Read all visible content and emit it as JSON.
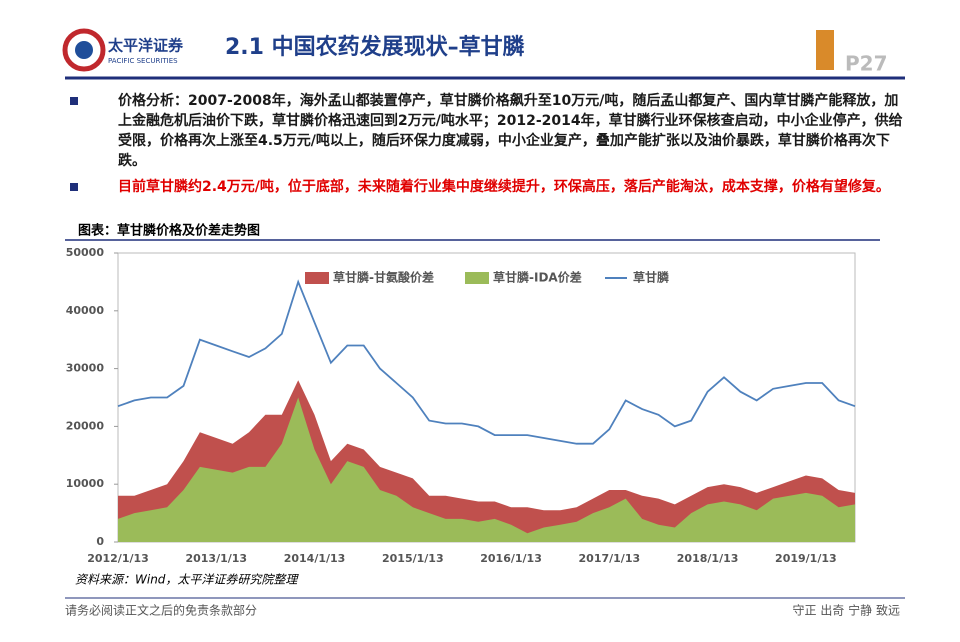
{
  "header": {
    "company": "太平洋证券",
    "company_en": "PACIFIC SECURITIES",
    "title": "2.1 中国农药发展现状–草甘膦",
    "page": "P27"
  },
  "bullets": [
    "价格分析：2007-2008年，海外孟山都装置停产，草甘膦价格飙升至10万元/吨，随后孟山都复产、国内草甘膦产能释放，加上金融危机后油价下跌，草甘膦价格迅速回到2万元/吨水平；2012-2014年，草甘膦行业环保核查启动，中小企业停产，供给受限，价格再次上涨至4.5万元/吨以上，随后环保力度减弱，中小企业复产，叠加产能扩张以及油价暴跌，草甘膦价格再次下跌。",
    "目前草甘膦约2.4万元/吨，位于底部，未来随着行业集中度继续提升，环保高压，落后产能淘汰，成本支撑，价格有望修复。"
  ],
  "chart_data": {
    "type": "area",
    "title": "图表：草甘膦价格及价差走势图",
    "categories": [
      "2012/1/13",
      null,
      null,
      null,
      null,
      null,
      "2013/1/13",
      null,
      null,
      null,
      null,
      null,
      "2014/1/13",
      null,
      null,
      null,
      null,
      null,
      "2015/1/13",
      null,
      null,
      null,
      null,
      null,
      "2016/1/13",
      null,
      null,
      null,
      null,
      null,
      "2017/1/13",
      null,
      null,
      null,
      null,
      null,
      "2018/1/13",
      null,
      null,
      null,
      null,
      null,
      "2019/1/13",
      null,
      null,
      null
    ],
    "ylim": [
      0,
      50000
    ],
    "yticks": [
      0,
      10000,
      20000,
      30000,
      40000,
      50000
    ],
    "series": [
      {
        "name": "草甘膦-甘氨酸价差",
        "color": "#c0504d",
        "values": [
          8000,
          8000,
          9000,
          10000,
          14000,
          19000,
          18000,
          17000,
          19000,
          22000,
          22000,
          28000,
          22000,
          14000,
          17000,
          16000,
          13000,
          12000,
          11000,
          8000,
          8000,
          7500,
          7000,
          7000,
          6000,
          6000,
          5500,
          5500,
          6000,
          7500,
          9000,
          9000,
          8000,
          7500,
          6500,
          8000,
          9500,
          10000,
          9500,
          8500,
          9500,
          10500,
          11500,
          11000,
          9000,
          8500
        ]
      },
      {
        "name": "草甘膦-IDA价差",
        "color": "#9bbb59",
        "values": [
          4000,
          5000,
          5500,
          6000,
          9000,
          13000,
          12500,
          12000,
          13000,
          13000,
          17000,
          25000,
          16000,
          10000,
          14000,
          13000,
          9000,
          8000,
          6000,
          5000,
          4000,
          4000,
          3500,
          4000,
          3000,
          1500,
          2500,
          3000,
          3500,
          5000,
          6000,
          7500,
          4000,
          3000,
          2500,
          5000,
          6500,
          7000,
          6500,
          5500,
          7500,
          8000,
          8500,
          8000,
          6000,
          6500
        ]
      },
      {
        "name": "草甘膦",
        "color": "#4f81bd",
        "line": true,
        "values": [
          23500,
          24500,
          25000,
          25000,
          27000,
          35000,
          34000,
          33000,
          32000,
          33500,
          36000,
          45000,
          38000,
          31000,
          34000,
          34000,
          30000,
          27500,
          25000,
          21000,
          20500,
          20500,
          20000,
          18500,
          18500,
          18500,
          18000,
          17500,
          17000,
          17000,
          19500,
          24500,
          23000,
          22000,
          20000,
          21000,
          26000,
          28500,
          26000,
          24500,
          26500,
          27000,
          27500,
          27500,
          24500,
          23500
        ]
      }
    ],
    "source": "资料来源：Wind，太平洋证券研究院整理"
  },
  "footer": {
    "left": "请务必阅读正文之后的免责条款部分",
    "right": "守正 出奇 宁静 致远"
  }
}
